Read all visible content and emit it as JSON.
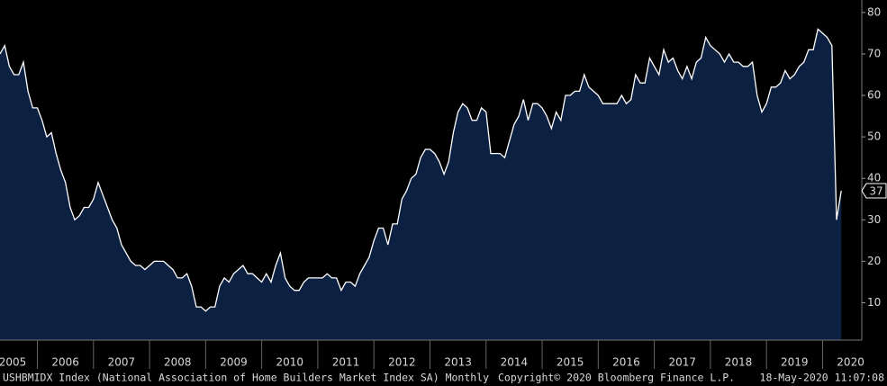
{
  "chart_data": {
    "type": "area",
    "series": [
      {
        "name": "USHBMIDX Index",
        "color": "#ffffff",
        "fill": "#0c2142",
        "values": [
          70,
          72,
          67,
          65,
          65,
          68,
          61,
          57,
          57,
          54,
          50,
          51,
          46,
          42,
          39,
          33,
          30,
          31,
          33,
          33,
          35,
          39,
          36,
          33,
          30,
          28,
          24,
          22,
          20,
          19,
          19,
          18,
          19,
          20,
          20,
          20,
          19,
          18,
          16,
          16,
          17,
          14,
          9,
          9,
          8,
          9,
          9,
          14,
          16,
          15,
          17,
          18,
          19,
          17,
          17,
          16,
          15,
          17,
          15,
          19,
          22,
          16,
          14,
          13,
          13,
          15,
          16,
          16,
          16,
          16,
          17,
          16,
          16,
          13,
          15,
          15,
          14,
          17,
          19,
          21,
          25,
          28,
          28,
          24,
          29,
          29,
          35,
          37,
          40,
          41,
          45,
          47,
          47,
          46,
          44,
          41,
          44,
          51,
          56,
          58,
          57,
          54,
          54,
          57,
          56,
          46,
          46,
          46,
          45,
          49,
          53,
          55,
          59,
          54,
          58,
          58,
          57,
          55,
          52,
          56,
          54,
          60,
          60,
          61,
          61,
          65,
          62,
          61,
          60,
          58,
          58,
          58,
          58,
          60,
          58,
          59,
          65,
          63,
          63,
          69,
          67,
          65,
          71,
          68,
          69,
          66,
          64,
          67,
          64,
          68,
          69,
          74,
          72,
          71,
          70,
          68,
          70,
          68,
          68,
          67,
          67,
          68,
          60,
          56,
          58,
          62,
          62,
          63,
          66,
          64,
          65,
          67,
          68,
          71,
          71,
          76,
          75,
          74,
          72,
          30,
          37
        ]
      }
    ],
    "ylim": [
      1,
      83
    ],
    "yticks": [
      10,
      20,
      30,
      40,
      50,
      60,
      70,
      80
    ],
    "xticks": [
      2005,
      2006,
      2007,
      2008,
      2009,
      2010,
      2011,
      2012,
      2013,
      2014,
      2015,
      2016,
      2017,
      2018,
      2019,
      2020
    ],
    "footer": {
      "series_label": "USHBMIDX Index (National Association of Home Builders Market Index SA)  Monthly",
      "copyright": "Copyright© 2020 Bloomberg Finance L.P.",
      "timestamp": "18-May-2020 11:07:08"
    }
  }
}
